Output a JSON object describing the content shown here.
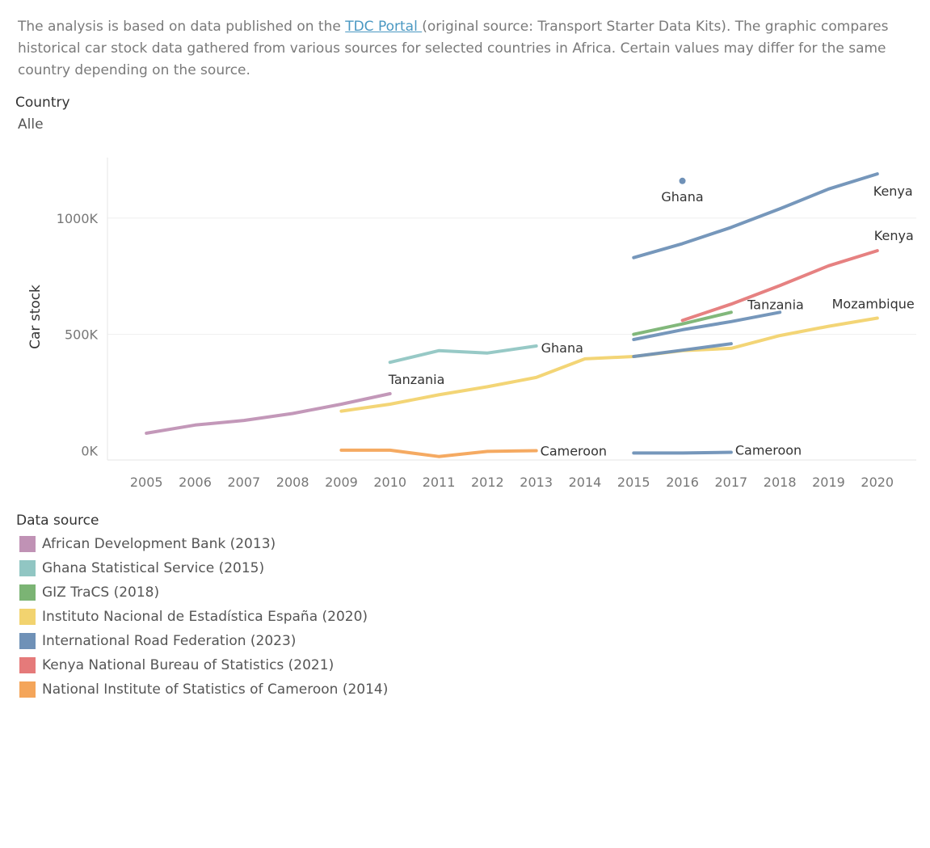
{
  "intro": {
    "before_link": "The analysis is based on data published on the ",
    "link_text": "TDC Portal ",
    "after_link": "(original source: Transport Starter Data Kits). The graphic compares historical car stock data gathered from various sources for selected countries in Africa. Certain values may differ for the same country depending on the source."
  },
  "filter": {
    "title": "Country",
    "value": "Alle"
  },
  "legend": {
    "title": "Data source"
  },
  "chart_data": {
    "type": "line",
    "title": "",
    "ylabel": "Car stock",
    "xlabel": "",
    "x": [
      2005,
      2006,
      2007,
      2008,
      2009,
      2010,
      2011,
      2012,
      2013,
      2014,
      2015,
      2016,
      2017,
      2018,
      2019,
      2020
    ],
    "x_tick_labels": [
      "2005",
      "2006",
      "2007",
      "2008",
      "2009",
      "2010",
      "2011",
      "2012",
      "2013",
      "2014",
      "2015",
      "2016",
      "2017",
      "2018",
      "2019",
      "2020"
    ],
    "y_ticks": [
      0,
      500000,
      1000000
    ],
    "y_tick_labels": [
      "0K",
      "500K",
      "1000K"
    ],
    "ylim": [
      -40000,
      1260000
    ],
    "xlim": [
      2004.2,
      2020.8
    ],
    "grid": "horizontal",
    "legend_position": "bottom-left",
    "series": [
      {
        "name": "African Development Bank (2013)",
        "color": "#c092b5",
        "lines": [
          {
            "label": "Tanzania",
            "points": [
              [
                2005,
                75000
              ],
              [
                2006,
                110000
              ],
              [
                2007,
                130000
              ],
              [
                2008,
                160000
              ],
              [
                2009,
                200000
              ],
              [
                2010,
                245000
              ]
            ]
          }
        ]
      },
      {
        "name": "Ghana Statistical Service (2015)",
        "color": "#91c6c3",
        "lines": [
          {
            "label": "Ghana",
            "points": [
              [
                2010,
                380000
              ],
              [
                2011,
                430000
              ],
              [
                2012,
                420000
              ],
              [
                2013,
                450000
              ]
            ]
          }
        ]
      },
      {
        "name": "GIZ TraCS (2018)",
        "color": "#7bb474",
        "lines": [
          {
            "label": "",
            "points": [
              [
                2015,
                500000
              ],
              [
                2016,
                545000
              ],
              [
                2017,
                595000
              ]
            ]
          }
        ]
      },
      {
        "name": "Instituto Nacional de Estadística España (2020)",
        "color": "#f2d36f",
        "lines": [
          {
            "label": "Mozambique",
            "points": [
              [
                2009,
                170000
              ],
              [
                2010,
                200000
              ],
              [
                2011,
                240000
              ],
              [
                2012,
                275000
              ],
              [
                2013,
                315000
              ],
              [
                2014,
                395000
              ],
              [
                2015,
                405000
              ],
              [
                2016,
                430000
              ],
              [
                2017,
                440000
              ],
              [
                2018,
                495000
              ],
              [
                2019,
                535000
              ],
              [
                2020,
                570000
              ]
            ]
          }
        ]
      },
      {
        "name": "International Road Federation (2023)",
        "color": "#6f91b7",
        "lines": [
          {
            "label": "Kenya",
            "points": [
              [
                2015,
                830000
              ],
              [
                2016,
                890000
              ],
              [
                2017,
                960000
              ],
              [
                2018,
                1040000
              ],
              [
                2019,
                1125000
              ],
              [
                2020,
                1190000
              ]
            ]
          },
          {
            "label": "Tanzania",
            "points": [
              [
                2015,
                478000
              ],
              [
                2016,
                520000
              ],
              [
                2017,
                555000
              ],
              [
                2018,
                595000
              ]
            ]
          },
          {
            "label": "",
            "points": [
              [
                2015,
                405000
              ],
              [
                2016,
                432000
              ],
              [
                2017,
                460000
              ]
            ]
          },
          {
            "label": "Cameroon",
            "points": [
              [
                2015,
                -10000
              ],
              [
                2016,
                -10000
              ],
              [
                2017,
                -7000
              ]
            ]
          },
          {
            "label": "Ghana",
            "points": [
              [
                2016,
                1160000
              ]
            ]
          }
        ]
      },
      {
        "name": "Kenya National Bureau of Statistics (2021)",
        "color": "#e57a7a",
        "lines": [
          {
            "label": "Kenya",
            "points": [
              [
                2016,
                560000
              ],
              [
                2017,
                630000
              ],
              [
                2018,
                710000
              ],
              [
                2019,
                795000
              ],
              [
                2020,
                860000
              ]
            ]
          }
        ]
      },
      {
        "name": "National Institute of Statistics of Cameroon (2014)",
        "color": "#f4a55a",
        "lines": [
          {
            "label": "Cameroon",
            "points": [
              [
                2009,
                2000
              ],
              [
                2010,
                2000
              ],
              [
                2011,
                -25000
              ],
              [
                2012,
                -3000
              ],
              [
                2013,
                0
              ]
            ]
          }
        ]
      }
    ]
  }
}
